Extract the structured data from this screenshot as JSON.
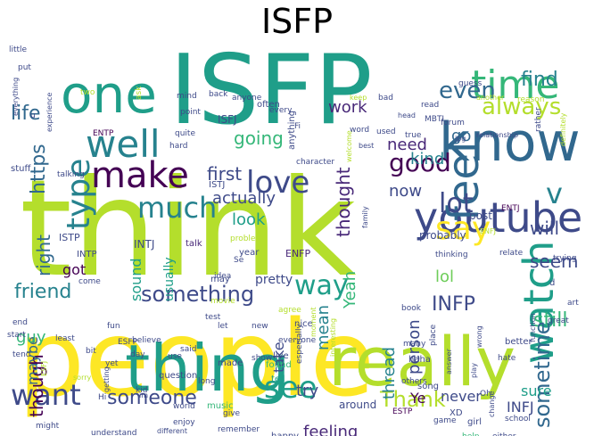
{
  "title": "ISFP",
  "palette": [
    "#440154",
    "#482878",
    "#3e4a89",
    "#31688e",
    "#26828e",
    "#1f9e89",
    "#35b779",
    "#6dcd59",
    "#b4de2c",
    "#fde725"
  ],
  "words": [
    {
      "text": "ISFP",
      "color": "#1f9e89"
    },
    {
      "text": "think",
      "color": "#b4de2c"
    },
    {
      "text": "people",
      "color": "#fde725"
    },
    {
      "text": "one",
      "color": "#1f9e89"
    },
    {
      "text": "know",
      "color": "#31688e"
    },
    {
      "text": "thing",
      "color": "#1f9e89"
    },
    {
      "text": "really",
      "color": "#b4de2c"
    },
    {
      "text": "youtube",
      "color": "#3e4a89"
    },
    {
      "text": "time",
      "color": "#35b779"
    },
    {
      "text": "well",
      "color": "#26828e"
    },
    {
      "text": "make",
      "color": "#440154"
    },
    {
      "text": "feel",
      "color": "#31688e"
    },
    {
      "text": "watch",
      "color": "#1f9e89"
    },
    {
      "text": "love",
      "color": "#3e4a89"
    },
    {
      "text": "type",
      "color": "#26828e"
    },
    {
      "text": "much",
      "color": "#26828e"
    },
    {
      "text": "say",
      "color": "#fde725"
    },
    {
      "text": "see",
      "color": "#1f9e89"
    },
    {
      "text": "want",
      "color": "#3e4a89"
    },
    {
      "text": "good",
      "color": "#440154"
    },
    {
      "text": "lot",
      "color": "#3e4a89"
    },
    {
      "text": "way",
      "color": "#1f9e89"
    },
    {
      "text": "v",
      "color": "#26828e"
    },
    {
      "text": "find",
      "color": "#26828e"
    },
    {
      "text": "even",
      "color": "#31688e"
    },
    {
      "text": "always",
      "color": "#b4de2c"
    },
    {
      "text": "life",
      "color": "#31688e"
    },
    {
      "text": "friend",
      "color": "#26828e"
    },
    {
      "text": "something",
      "color": "#3e4a89"
    },
    {
      "text": "someone",
      "color": "#3e4a89"
    },
    {
      "text": "Thank",
      "color": "#b4de2c"
    },
    {
      "text": "INFP",
      "color": "#3e4a89"
    },
    {
      "text": "will",
      "color": "#3e4a89"
    },
    {
      "text": "seem",
      "color": "#3e4a89"
    },
    {
      "text": "still",
      "color": "#35b779"
    },
    {
      "text": "sometime",
      "color": "#31688e"
    },
    {
      "text": "https",
      "color": "#31688e"
    },
    {
      "text": "going",
      "color": "#35b779"
    },
    {
      "text": "first",
      "color": "#3e4a89"
    },
    {
      "text": "thought",
      "color": "#482878"
    },
    {
      "text": "though",
      "color": "#440154"
    },
    {
      "text": "need",
      "color": "#482878"
    },
    {
      "text": "kind",
      "color": "#26828e"
    },
    {
      "text": "now",
      "color": "#3e4a89"
    },
    {
      "text": "go",
      "color": "#31688e"
    },
    {
      "text": "work",
      "color": "#482878"
    },
    {
      "text": "look",
      "color": "#1f9e89"
    },
    {
      "text": "actually",
      "color": "#3e4a89"
    },
    {
      "text": "got",
      "color": "#440154"
    },
    {
      "text": "right",
      "color": "#31688e"
    },
    {
      "text": "sound",
      "color": "#1f9e89"
    },
    {
      "text": "usually",
      "color": "#1f9e89"
    },
    {
      "text": "mean",
      "color": "#26828e"
    },
    {
      "text": "Yeah",
      "color": "#35b779"
    },
    {
      "text": "person",
      "color": "#3e4a89"
    },
    {
      "text": "thread",
      "color": "#26828e"
    },
    {
      "text": "lol",
      "color": "#6dcd59"
    },
    {
      "text": "maybe",
      "color": "#31688e"
    },
    {
      "text": "guy",
      "color": "#35b779"
    },
    {
      "text": "try",
      "color": "#3e4a89"
    },
    {
      "text": "take",
      "color": "#3e4a89"
    },
    {
      "text": "feeling",
      "color": "#482878"
    },
    {
      "text": "sure",
      "color": "#1f9e89"
    },
    {
      "text": "INFJ",
      "color": "#3e4a89"
    },
    {
      "text": "never",
      "color": "#3e4a89"
    },
    {
      "text": "Ye",
      "color": "#440154"
    },
    {
      "text": "probably",
      "color": "#3e4a89"
    },
    {
      "text": "post",
      "color": "#3e4a89"
    },
    {
      "text": "ISFJ",
      "color": "#3e4a89"
    },
    {
      "text": "ISTJ",
      "color": "#3e4a89"
    },
    {
      "text": "ISTP",
      "color": "#3e4a89"
    },
    {
      "text": "INTP",
      "color": "#3e4a89"
    },
    {
      "text": "INTJ",
      "color": "#3e4a89"
    },
    {
      "text": "ENFP",
      "color": "#482878"
    },
    {
      "text": "ENTP",
      "color": "#440154"
    },
    {
      "text": "ENTJ",
      "color": "#440154"
    },
    {
      "text": "ENFJ",
      "color": "#b4de2c"
    },
    {
      "text": "ESFP",
      "color": "#3e4a89"
    },
    {
      "text": "ESTP",
      "color": "#440154"
    },
    {
      "text": "ESFJ",
      "color": "#b4de2c"
    },
    {
      "text": "ISTJ",
      "color": "#3e4a89"
    },
    {
      "text": "MBTI",
      "color": "#3e4a89"
    },
    {
      "text": "pretty",
      "color": "#3e4a89"
    },
    {
      "text": "may",
      "color": "#3e4a89"
    },
    {
      "text": "year",
      "color": "#3e4a89"
    },
    {
      "text": "talk",
      "color": "#482878"
    },
    {
      "text": "song",
      "color": "#3e4a89"
    },
    {
      "text": "music",
      "color": "#35b779"
    },
    {
      "text": "question",
      "color": "#3e4a89"
    },
    {
      "text": "made",
      "color": "#3e4a89"
    },
    {
      "text": "live",
      "color": "#3e4a89"
    },
    {
      "text": "found",
      "color": "#35b779"
    },
    {
      "text": "tell",
      "color": "#1f9e89"
    },
    {
      "text": "around",
      "color": "#3e4a89"
    },
    {
      "text": "happy",
      "color": "#3e4a89"
    },
    {
      "text": "XD",
      "color": "#3e4a89"
    },
    {
      "text": "girl",
      "color": "#3e4a89"
    },
    {
      "text": "help",
      "color": "#35b779"
    },
    {
      "text": "either",
      "color": "#3e4a89"
    },
    {
      "text": "school",
      "color": "#3e4a89"
    },
    {
      "text": "haha",
      "color": "#3e4a89"
    },
    {
      "text": "better",
      "color": "#3e4a89"
    },
    {
      "text": "hate",
      "color": "#3e4a89"
    },
    {
      "text": "great",
      "color": "#3e4a89"
    },
    {
      "text": "art",
      "color": "#3e4a89"
    },
    {
      "text": "trying",
      "color": "#3e4a89"
    },
    {
      "text": "relate",
      "color": "#3e4a89"
    },
    {
      "text": "thinking",
      "color": "#3e4a89"
    },
    {
      "text": "book",
      "color": "#3e4a89"
    },
    {
      "text": "test",
      "color": "#3e4a89"
    },
    {
      "text": "idea",
      "color": "#3e4a89"
    },
    {
      "text": "movie",
      "color": "#b4de2c"
    },
    {
      "text": "let",
      "color": "#3e4a89"
    },
    {
      "text": "new",
      "color": "#3e4a89"
    },
    {
      "text": "agree",
      "color": "#b4de2c"
    },
    {
      "text": "nice",
      "color": "#3e4a89"
    },
    {
      "text": "everyone",
      "color": "#3e4a89"
    },
    {
      "text": "said",
      "color": "#3e4a89"
    },
    {
      "text": "day",
      "color": "#3e4a89"
    },
    {
      "text": "use",
      "color": "#3e4a89"
    },
    {
      "text": "fun",
      "color": "#3e4a89"
    },
    {
      "text": "end",
      "color": "#3e4a89"
    },
    {
      "text": "come",
      "color": "#3e4a89"
    },
    {
      "text": "hard",
      "color": "#3e4a89"
    },
    {
      "text": "quite",
      "color": "#3e4a89"
    },
    {
      "text": "point",
      "color": "#3e4a89"
    },
    {
      "text": "mind",
      "color": "#3e4a89"
    },
    {
      "text": "anyone",
      "color": "#3e4a89"
    },
    {
      "text": "back",
      "color": "#3e4a89"
    },
    {
      "text": "often",
      "color": "#3e4a89"
    },
    {
      "text": "anything",
      "color": "#3e4a89"
    },
    {
      "text": "every",
      "color": "#3e4a89"
    },
    {
      "text": "bad",
      "color": "#3e4a89"
    },
    {
      "text": "head",
      "color": "#3e4a89"
    },
    {
      "text": "guess",
      "color": "#3e4a89"
    },
    {
      "text": "another",
      "color": "#b4de2c"
    },
    {
      "text": "reason",
      "color": "#b4de2c"
    },
    {
      "text": "rather",
      "color": "#3e4a89"
    },
    {
      "text": "definitely",
      "color": "#b4de2c"
    },
    {
      "text": "forum",
      "color": "#3e4a89"
    },
    {
      "text": "jpg",
      "color": "#3e4a89"
    },
    {
      "text": "relationship",
      "color": "#3e4a89"
    },
    {
      "text": "word",
      "color": "#3e4a89"
    },
    {
      "text": "keep",
      "color": "#b4de2c"
    },
    {
      "text": "read",
      "color": "#3e4a89"
    },
    {
      "text": "used",
      "color": "#3e4a89"
    },
    {
      "text": "true",
      "color": "#3e4a89"
    },
    {
      "text": "best",
      "color": "#3e4a89"
    },
    {
      "text": "character",
      "color": "#3e4a89"
    },
    {
      "text": "welcome",
      "color": "#b4de2c"
    },
    {
      "text": "family",
      "color": "#3e4a89"
    },
    {
      "text": "problem",
      "color": "#b4de2c"
    },
    {
      "text": "Se",
      "color": "#3e4a89"
    },
    {
      "text": "Fi",
      "color": "#3e4a89"
    },
    {
      "text": "little",
      "color": "#3e4a89"
    },
    {
      "text": "put",
      "color": "#3e4a89"
    },
    {
      "text": "two",
      "color": "#b4de2c"
    },
    {
      "text": "ask",
      "color": "#b4de2c"
    },
    {
      "text": "everything",
      "color": "#3e4a89"
    },
    {
      "text": "experience",
      "color": "#3e4a89"
    },
    {
      "text": "stuff",
      "color": "#3e4a89"
    },
    {
      "text": "talking",
      "color": "#3e4a89"
    },
    {
      "text": "start",
      "color": "#3e4a89"
    },
    {
      "text": "tend",
      "color": "#3e4a89"
    },
    {
      "text": "least",
      "color": "#3e4a89"
    },
    {
      "text": "bit",
      "color": "#3e4a89"
    },
    {
      "text": "yet",
      "color": "#3e4a89"
    },
    {
      "text": "believe",
      "color": "#3e4a89"
    },
    {
      "text": "especially",
      "color": "#3e4a89"
    },
    {
      "text": "show",
      "color": "#3e4a89"
    },
    {
      "text": "moment",
      "color": "#b4de2c"
    },
    {
      "text": "interesting",
      "color": "#b4de2c"
    },
    {
      "text": "others",
      "color": "#3e4a89"
    },
    {
      "text": "many",
      "color": "#3e4a89"
    },
    {
      "text": "place",
      "color": "#3e4a89"
    },
    {
      "text": "answer",
      "color": "#3e4a89"
    },
    {
      "text": "play",
      "color": "#3e4a89"
    },
    {
      "text": "wrong",
      "color": "#3e4a89"
    },
    {
      "text": "function",
      "color": "#3e4a89"
    },
    {
      "text": "change",
      "color": "#3e4a89"
    },
    {
      "text": "Oh",
      "color": "#3e4a89"
    },
    {
      "text": "game",
      "color": "#3e4a89"
    },
    {
      "text": "world",
      "color": "#3e4a89"
    },
    {
      "text": "long",
      "color": "#3e4a89"
    },
    {
      "text": "enjoy",
      "color": "#3e4a89"
    },
    {
      "text": "kid",
      "color": "#3e4a89"
    },
    {
      "text": "im",
      "color": "#3e4a89"
    },
    {
      "text": "Hi",
      "color": "#3e4a89"
    },
    {
      "text": "getting",
      "color": "#3e4a89"
    },
    {
      "text": "sorry",
      "color": "#b4de2c"
    },
    {
      "text": "might",
      "color": "#3e4a89"
    },
    {
      "text": "understand",
      "color": "#3e4a89"
    },
    {
      "text": "different",
      "color": "#3e4a89"
    },
    {
      "text": "remember",
      "color": "#3e4a89"
    },
    {
      "text": "give",
      "color": "#3e4a89"
    },
    {
      "text": "u",
      "color": "#3e4a89"
    },
    {
      "text": "d",
      "color": "#3e4a89"
    }
  ]
}
